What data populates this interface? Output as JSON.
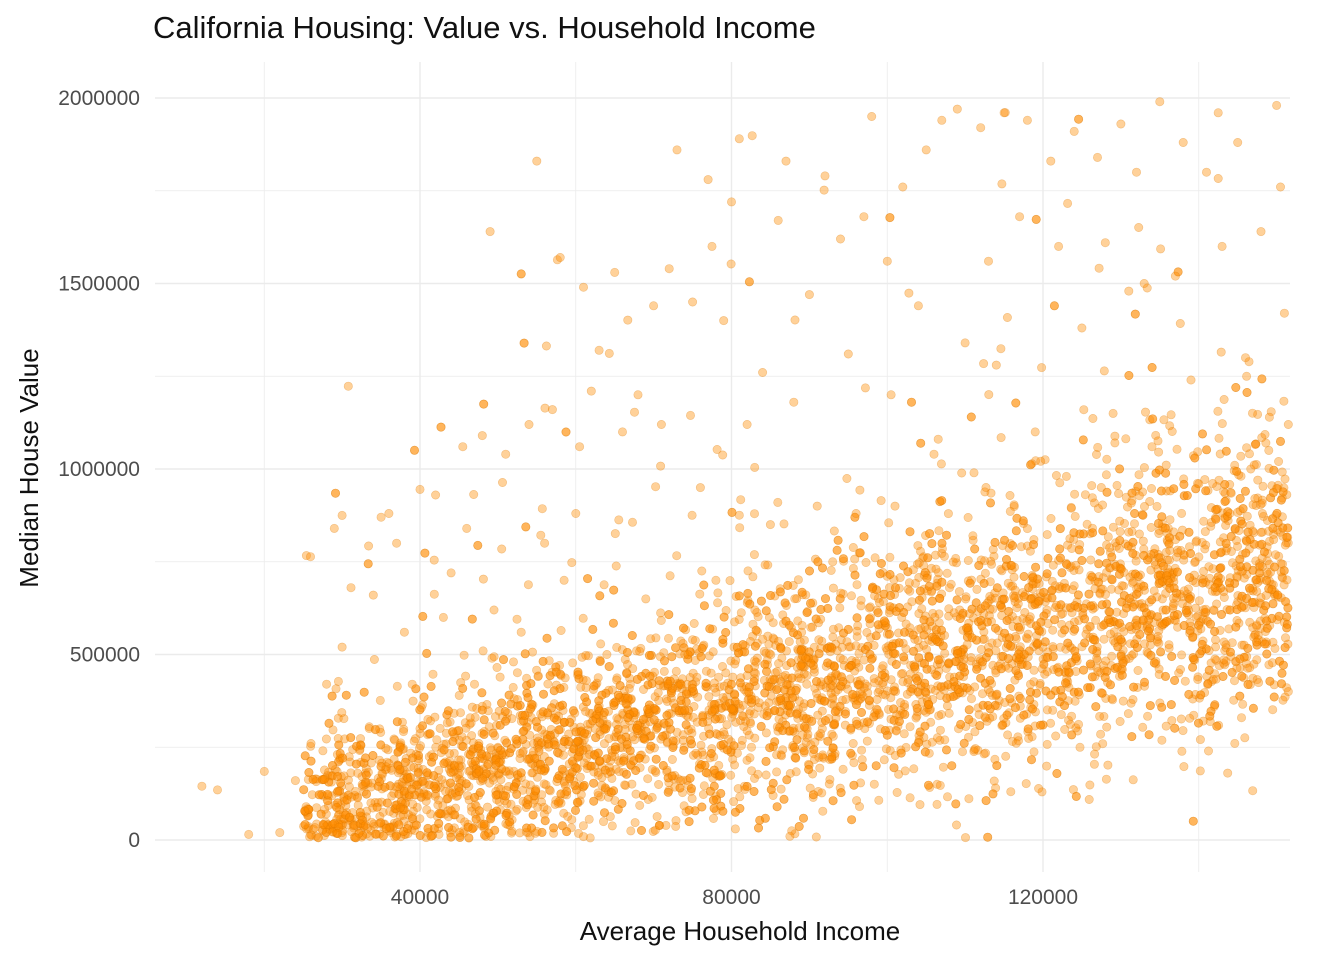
{
  "chart_data": {
    "type": "scatter",
    "title": "California Housing: Value vs. Household Income",
    "xlabel": "Average Household Income",
    "ylabel": "Median House Value",
    "x_ticks": [
      "40000",
      "80000",
      "120000"
    ],
    "y_ticks": [
      "0",
      "500000",
      "1000000",
      "1500000",
      "2000000"
    ],
    "xlim": [
      10000,
      152000
    ],
    "ylim": [
      -80000,
      2080000
    ],
    "grid": true,
    "legend": "none",
    "point_color": "#FF8C00",
    "point_opacity": 0.4,
    "points": [
      [
        12000,
        145000
      ],
      [
        14000,
        135000
      ],
      [
        18000,
        15000
      ],
      [
        20000,
        185000
      ],
      [
        22000,
        20000
      ],
      [
        24000,
        160000
      ],
      [
        26000,
        260000
      ],
      [
        28000,
        420000
      ],
      [
        29000,
        840000
      ],
      [
        30000,
        875000
      ],
      [
        30000,
        520000
      ],
      [
        32000,
        180000
      ],
      [
        33000,
        40000
      ],
      [
        34000,
        660000
      ],
      [
        35000,
        870000
      ],
      [
        36000,
        880000
      ],
      [
        37000,
        800000
      ],
      [
        38000,
        560000
      ],
      [
        39000,
        420000
      ],
      [
        40000,
        945000
      ],
      [
        40000,
        300000
      ],
      [
        41000,
        120000
      ],
      [
        42000,
        930000
      ],
      [
        43000,
        600000
      ],
      [
        44000,
        720000
      ],
      [
        45000,
        200000
      ],
      [
        45500,
        1060000
      ],
      [
        46000,
        840000
      ],
      [
        47000,
        420000
      ],
      [
        48000,
        1090000
      ],
      [
        49000,
        1640000
      ],
      [
        49500,
        620000
      ],
      [
        50000,
        250000
      ],
      [
        51000,
        1040000
      ],
      [
        52000,
        480000
      ],
      [
        53000,
        560000
      ],
      [
        54000,
        1120000
      ],
      [
        55000,
        1830000
      ],
      [
        55500,
        340000
      ],
      [
        56000,
        800000
      ],
      [
        57000,
        1160000
      ],
      [
        58000,
        1570000
      ],
      [
        58500,
        700000
      ],
      [
        60000,
        880000
      ],
      [
        60500,
        1060000
      ],
      [
        61000,
        1490000
      ],
      [
        62000,
        1210000
      ],
      [
        62500,
        300000
      ],
      [
        63000,
        1320000
      ],
      [
        64000,
        500000
      ],
      [
        65000,
        1530000
      ],
      [
        66000,
        1100000
      ],
      [
        67000,
        420000
      ],
      [
        68000,
        1200000
      ],
      [
        69000,
        650000
      ],
      [
        70000,
        1440000
      ],
      [
        71000,
        1120000
      ],
      [
        72000,
        1540000
      ],
      [
        73000,
        1860000
      ],
      [
        74000,
        500000
      ],
      [
        75000,
        1450000
      ],
      [
        76000,
        950000
      ],
      [
        77000,
        1780000
      ],
      [
        77500,
        1600000
      ],
      [
        78000,
        700000
      ],
      [
        79000,
        1400000
      ],
      [
        80000,
        1720000
      ],
      [
        80500,
        30000
      ],
      [
        81000,
        1890000
      ],
      [
        82000,
        1120000
      ],
      [
        83000,
        620000
      ],
      [
        84000,
        1260000
      ],
      [
        85000,
        850000
      ],
      [
        86000,
        1670000
      ],
      [
        87000,
        1830000
      ],
      [
        87500,
        10000
      ],
      [
        88000,
        1180000
      ],
      [
        89000,
        560000
      ],
      [
        90000,
        1470000
      ],
      [
        91000,
        900000
      ],
      [
        92000,
        1790000
      ],
      [
        93000,
        750000
      ],
      [
        94000,
        1620000
      ],
      [
        95000,
        1310000
      ],
      [
        96000,
        880000
      ],
      [
        97000,
        1680000
      ],
      [
        98000,
        1950000
      ],
      [
        99000,
        640000
      ],
      [
        100000,
        1560000
      ],
      [
        100500,
        1200000
      ],
      [
        101000,
        900000
      ],
      [
        102000,
        1760000
      ],
      [
        103000,
        400000
      ],
      [
        104000,
        1440000
      ],
      [
        105000,
        1860000
      ],
      [
        106000,
        1040000
      ],
      [
        107000,
        1940000
      ],
      [
        108000,
        680000
      ],
      [
        109000,
        1970000
      ],
      [
        110000,
        1340000
      ],
      [
        111000,
        820000
      ],
      [
        112000,
        1920000
      ],
      [
        113000,
        1560000
      ],
      [
        114000,
        1280000
      ],
      [
        115000,
        1960000
      ],
      [
        116000,
        740000
      ],
      [
        117000,
        1680000
      ],
      [
        118000,
        1940000
      ],
      [
        119000,
        1100000
      ],
      [
        120000,
        520000
      ],
      [
        121000,
        1830000
      ],
      [
        122000,
        1600000
      ],
      [
        123000,
        980000
      ],
      [
        124000,
        1910000
      ],
      [
        125000,
        1380000
      ],
      [
        126000,
        700000
      ],
      [
        127000,
        1840000
      ],
      [
        128000,
        1610000
      ],
      [
        129000,
        1150000
      ],
      [
        130000,
        1930000
      ],
      [
        131000,
        830000
      ],
      [
        132000,
        1800000
      ],
      [
        133000,
        1500000
      ],
      [
        134000,
        1060000
      ],
      [
        135000,
        1990000
      ],
      [
        136000,
        700000
      ],
      [
        137000,
        1520000
      ],
      [
        138000,
        1880000
      ],
      [
        139000,
        1240000
      ],
      [
        140000,
        960000
      ],
      [
        141000,
        1800000
      ],
      [
        142000,
        360000
      ],
      [
        142500,
        1960000
      ],
      [
        143000,
        1600000
      ],
      [
        144000,
        880000
      ],
      [
        145000,
        1880000
      ],
      [
        146000,
        1300000
      ],
      [
        147000,
        640000
      ],
      [
        148000,
        1640000
      ],
      [
        149000,
        1050000
      ],
      [
        150000,
        1980000
      ],
      [
        150500,
        1760000
      ],
      [
        151000,
        1420000
      ],
      [
        151500,
        400000
      ],
      [
        151500,
        1120000
      ]
    ]
  }
}
